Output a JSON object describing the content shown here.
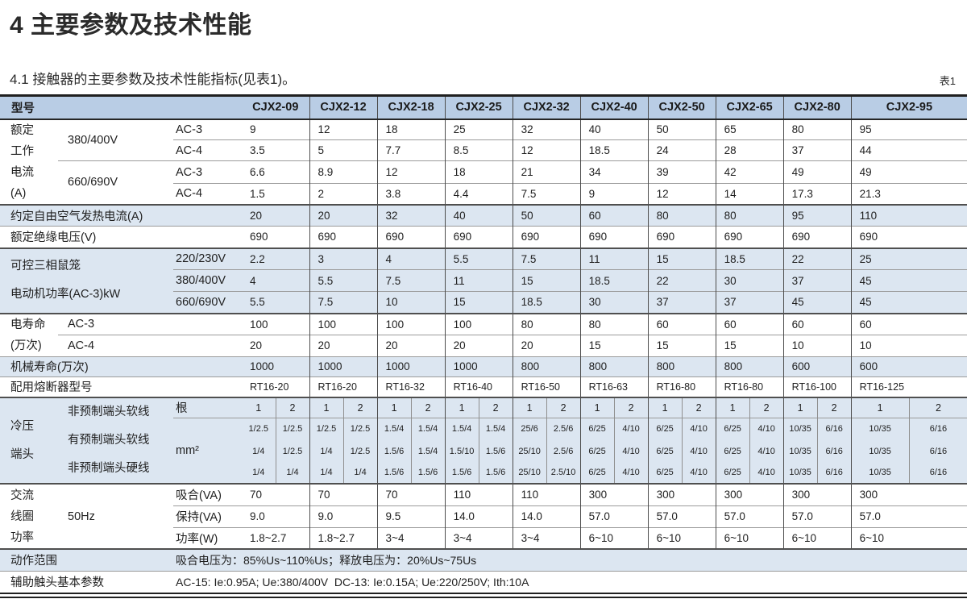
{
  "page": {
    "title": "4 主要参数及技术性能",
    "subtitle": "4.1 接触器的主要参数及技术性能指标(见表1)。",
    "table_tag": "表1"
  },
  "colors": {
    "header_bg": "#b9cde5",
    "stripe_bg": "#dce6f1",
    "rule_dark": "#1f1f1f"
  },
  "header": {
    "model_label": "型号",
    "models": [
      "CJX2-09",
      "CJX2-12",
      "CJX2-18",
      "CJX2-25",
      "CJX2-32",
      "CJX2-40",
      "CJX2-50",
      "CJX2-65",
      "CJX2-80",
      "CJX2-95"
    ]
  },
  "rated_current": {
    "group": "额定\n工作\n电流\n(A)",
    "v380": "380/400V",
    "v660": "660/690V",
    "ac3": "AC-3",
    "ac4": "AC-4",
    "rows": {
      "r380_ac3": [
        "9",
        "12",
        "18",
        "25",
        "32",
        "40",
        "50",
        "65",
        "80",
        "95"
      ],
      "r380_ac4": [
        "3.5",
        "5",
        "7.7",
        "8.5",
        "12",
        "18.5",
        "24",
        "28",
        "37",
        "44"
      ],
      "r660_ac3": [
        "6.6",
        "8.9",
        "12",
        "18",
        "21",
        "34",
        "39",
        "42",
        "49",
        "49"
      ],
      "r660_ac4": [
        "1.5",
        "2",
        "3.8",
        "4.4",
        "7.5",
        "9",
        "12",
        "14",
        "17.3",
        "21.3"
      ]
    }
  },
  "heat_current": {
    "label": "约定自由空气发热电流(A)",
    "values": [
      "20",
      "20",
      "32",
      "40",
      "50",
      "60",
      "80",
      "80",
      "95",
      "110"
    ]
  },
  "insulation": {
    "label": "额定绝缘电压(V)",
    "values": [
      "690",
      "690",
      "690",
      "690",
      "690",
      "690",
      "690",
      "690",
      "690",
      "690"
    ]
  },
  "motor_power": {
    "group": "可控三相鼠笼\n电动机功率(AC-3)kW",
    "v220": "220/230V",
    "v380": "380/400V",
    "v660": "660/690V",
    "rows": {
      "r220": [
        "2.2",
        "3",
        "4",
        "5.5",
        "7.5",
        "11",
        "15",
        "18.5",
        "22",
        "25"
      ],
      "r380": [
        "4",
        "5.5",
        "7.5",
        "11",
        "15",
        "18.5",
        "22",
        "30",
        "37",
        "45"
      ],
      "r660": [
        "5.5",
        "7.5",
        "10",
        "15",
        "18.5",
        "30",
        "37",
        "37",
        "45",
        "45"
      ]
    }
  },
  "elec_life": {
    "group": "电寿命\n(万次)",
    "ac3": "AC-3",
    "ac4": "AC-4",
    "rows": {
      "ac3": [
        "100",
        "100",
        "100",
        "100",
        "80",
        "80",
        "60",
        "60",
        "60",
        "60"
      ],
      "ac4": [
        "20",
        "20",
        "20",
        "20",
        "20",
        "15",
        "15",
        "15",
        "10",
        "10"
      ]
    }
  },
  "mech_life": {
    "label": "机械寿命(万次)",
    "values": [
      "1000",
      "1000",
      "1000",
      "1000",
      "800",
      "800",
      "800",
      "800",
      "600",
      "600"
    ]
  },
  "fuse": {
    "label": "配用熔断器型号",
    "values": [
      "RT16-20",
      "RT16-20",
      "RT16-32",
      "RT16-40",
      "RT16-50",
      "RT16-63",
      "RT16-80",
      "RT16-80",
      "RT16-100",
      "RT16-125"
    ]
  },
  "cold_terminal": {
    "group": "冷压\n端头",
    "wire_types": "非预制端头软线\n有预制端头软线\n非预制端头硬线",
    "unit_count": "根",
    "unit_area": "mm²",
    "counts": [
      "1",
      "2",
      "1",
      "2",
      "1",
      "2",
      "1",
      "2",
      "1",
      "2",
      "1",
      "2",
      "1",
      "2",
      "1",
      "2",
      "1",
      "2",
      "1",
      "2"
    ],
    "rows": {
      "soft_unprefab": [
        "1/2.5",
        "1/2.5",
        "1/2.5",
        "1/2.5",
        "1.5/4",
        "1.5/4",
        "1.5/4",
        "1.5/4",
        "25/6",
        "2.5/6",
        "6/25",
        "4/10",
        "6/25",
        "4/10",
        "6/25",
        "4/10",
        "10/35",
        "6/16",
        "10/35",
        "6/16"
      ],
      "soft_prefab": [
        "1/4",
        "1/2.5",
        "1/4",
        "1/2.5",
        "1.5/6",
        "1.5/4",
        "1.5/10",
        "1.5/6",
        "25/10",
        "2.5/6",
        "6/25",
        "4/10",
        "6/25",
        "4/10",
        "6/25",
        "4/10",
        "10/35",
        "6/16",
        "10/35",
        "6/16"
      ],
      "hard_unprefab": [
        "1/4",
        "1/4",
        "1/4",
        "1/4",
        "1.5/6",
        "1.5/6",
        "1.5/6",
        "1.5/6",
        "25/10",
        "2.5/10",
        "6/25",
        "4/10",
        "6/25",
        "4/10",
        "6/25",
        "4/10",
        "10/35",
        "6/16",
        "10/35",
        "6/16"
      ]
    }
  },
  "coil": {
    "group": "交流\n线圈\n功率",
    "freq": "50Hz",
    "pull_label": "吸合(VA)",
    "hold_label": "保持(VA)",
    "power_label": "功率(W)",
    "rows": {
      "pull": [
        "70",
        "70",
        "70",
        "110",
        "110",
        "300",
        "300",
        "300",
        "300",
        "300"
      ],
      "hold": [
        "9.0",
        "9.0",
        "9.5",
        "14.0",
        "14.0",
        "57.0",
        "57.0",
        "57.0",
        "57.0",
        "57.0"
      ],
      "power": [
        "1.8~2.7",
        "1.8~2.7",
        "3~4",
        "3~4",
        "3~4",
        "6~10",
        "6~10",
        "6~10",
        "6~10",
        "6~10"
      ]
    }
  },
  "action_range": {
    "label": "动作范围",
    "value": "吸合电压为：85%Us~110%Us；释放电压为：20%Us~75Us"
  },
  "aux_contact": {
    "label": "辅助触头基本参数",
    "value": "AC-15: Ie:0.95A; Ue:380/400V  DC-13: Ie:0.15A; Ue:220/250V; Ith:10A"
  }
}
